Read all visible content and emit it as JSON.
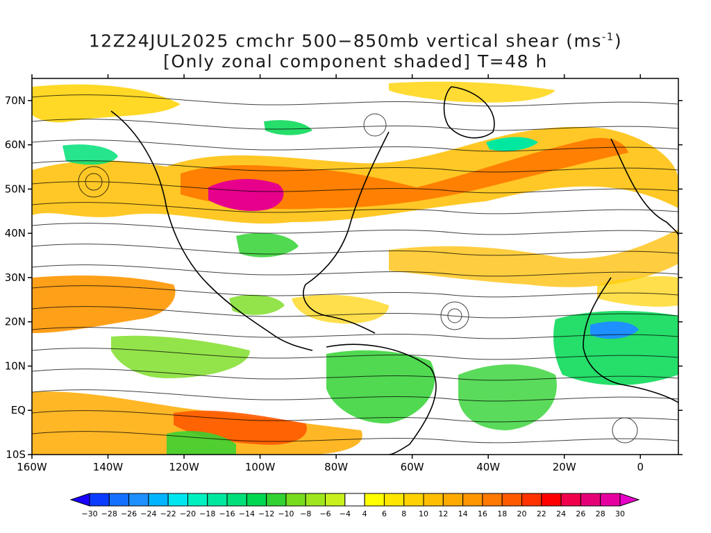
{
  "title": {
    "line1_prefix": "12Z24JUL2025 cmchr 500−850mb vertical shear (ms",
    "line1_sup": "-1",
    "line1_suffix": ")",
    "line2": "[Only zonal component shaded] T=48 h"
  },
  "map": {
    "lat_labels": [
      "70N",
      "60N",
      "50N",
      "40N",
      "30N",
      "20N",
      "10N",
      "EQ",
      "10S"
    ],
    "lat_values": [
      70,
      60,
      50,
      40,
      30,
      20,
      10,
      0,
      -10
    ],
    "lon_labels": [
      "160W",
      "140W",
      "120W",
      "100W",
      "80W",
      "60W",
      "40W",
      "20W",
      "0"
    ],
    "lon_values": [
      -160,
      -140,
      -120,
      -100,
      -80,
      -60,
      -40,
      -20,
      0
    ],
    "lon_range": [
      -160,
      10
    ],
    "lat_range": [
      -10,
      75
    ],
    "shaded_field": "zonal component of 500-850mb vertical shear",
    "overlay": "streamlines"
  },
  "colorbar": {
    "labels": [
      "−30",
      "−28",
      "−26",
      "−24",
      "−22",
      "−20",
      "−18",
      "−16",
      "−14",
      "−12",
      "−10",
      "−8",
      "−6",
      "−4",
      "4",
      "6",
      "8",
      "10",
      "12",
      "14",
      "16",
      "18",
      "20",
      "22",
      "24",
      "26",
      "28",
      "30"
    ],
    "colors": [
      "#1a00ff",
      "#0a3cff",
      "#1470ff",
      "#1e90ff",
      "#00b4ff",
      "#00e6f0",
      "#00f0c0",
      "#00e8a0",
      "#00e078",
      "#00d850",
      "#32d232",
      "#78dc1e",
      "#a0e61e",
      "#c8f01e",
      "#ffffff",
      "#ffff00",
      "#ffe600",
      "#ffd200",
      "#ffbe00",
      "#ffaa00",
      "#ff9600",
      "#ff7800",
      "#ff5a00",
      "#ff3200",
      "#ff0000",
      "#f0004b",
      "#e60078",
      "#e600a0",
      "#e600c8"
    ]
  }
}
